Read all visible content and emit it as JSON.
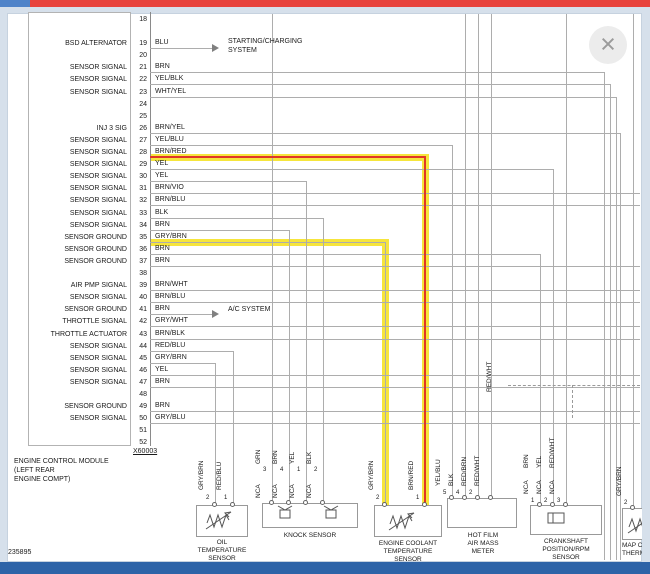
{
  "window": {
    "close_icon": "×",
    "doc_number": "235895"
  },
  "module": {
    "name_lines": [
      "ENGINE CONTROL MODULE",
      "(LEFT REAR",
      "ENGINE COMPT)"
    ],
    "connector_id": "X60003",
    "pins": [
      {
        "num": "18",
        "color": "",
        "signal": ""
      },
      {
        "num": "19",
        "color": "BLU",
        "signal": "BSD ALTERNATOR"
      },
      {
        "num": "20",
        "color": "",
        "signal": ""
      },
      {
        "num": "21",
        "color": "BRN",
        "signal": "SENSOR SIGNAL"
      },
      {
        "num": "22",
        "color": "YEL/BLK",
        "signal": "SENSOR SIGNAL"
      },
      {
        "num": "23",
        "color": "WHT/YEL",
        "signal": "SENSOR SIGNAL"
      },
      {
        "num": "24",
        "color": "",
        "signal": ""
      },
      {
        "num": "25",
        "color": "",
        "signal": ""
      },
      {
        "num": "26",
        "color": "BRN/YEL",
        "signal": "INJ 3 SIG"
      },
      {
        "num": "27",
        "color": "YEL/BLU",
        "signal": "SENSOR SIGNAL"
      },
      {
        "num": "28",
        "color": "BRN/RED",
        "signal": "SENSOR SIGNAL"
      },
      {
        "num": "29",
        "color": "YEL",
        "signal": "SENSOR SIGNAL"
      },
      {
        "num": "30",
        "color": "YEL",
        "signal": "SENSOR SIGNAL"
      },
      {
        "num": "31",
        "color": "BRN/VIO",
        "signal": "SENSOR SIGNAL"
      },
      {
        "num": "32",
        "color": "BRN/BLU",
        "signal": "SENSOR SIGNAL"
      },
      {
        "num": "33",
        "color": "BLK",
        "signal": "SENSOR SIGNAL"
      },
      {
        "num": "34",
        "color": "BRN",
        "signal": "SENSOR SIGNAL"
      },
      {
        "num": "35",
        "color": "GRY/BRN",
        "signal": "SENSOR GROUND"
      },
      {
        "num": "36",
        "color": "BRN",
        "signal": "SENSOR GROUND"
      },
      {
        "num": "37",
        "color": "BRN",
        "signal": "SENSOR GROUND"
      },
      {
        "num": "38",
        "color": "",
        "signal": ""
      },
      {
        "num": "39",
        "color": "BRN/WHT",
        "signal": "AIR PMP SIGNAL"
      },
      {
        "num": "40",
        "color": "BRN/BLU",
        "signal": "SENSOR SIGNAL"
      },
      {
        "num": "41",
        "color": "BRN",
        "signal": "SENSOR GROUND"
      },
      {
        "num": "42",
        "color": "GRY/WHT",
        "signal": "THROTTLE SIGNAL"
      },
      {
        "num": "43",
        "color": "BRN/BLK",
        "signal": "THROTTLE ACTUATOR"
      },
      {
        "num": "44",
        "color": "RED/BLU",
        "signal": "SENSOR SIGNAL"
      },
      {
        "num": "45",
        "color": "GRY/BRN",
        "signal": "SENSOR SIGNAL"
      },
      {
        "num": "46",
        "color": "YEL",
        "signal": "SENSOR SIGNAL"
      },
      {
        "num": "47",
        "color": "BRN",
        "signal": "SENSOR SIGNAL"
      },
      {
        "num": "48",
        "color": "",
        "signal": ""
      },
      {
        "num": "49",
        "color": "BRN",
        "signal": "SENSOR GROUND"
      },
      {
        "num": "50",
        "color": "GRY/BLU",
        "signal": "SENSOR SIGNAL"
      },
      {
        "num": "51",
        "color": "",
        "signal": ""
      },
      {
        "num": "52",
        "color": "",
        "signal": ""
      }
    ]
  },
  "external_links": {
    "starting_charging": [
      "STARTING/CHARGING",
      "SYSTEM"
    ],
    "ac_system": "A/C SYSTEM"
  },
  "wire_note": "RED/WHT",
  "sensors": [
    {
      "name_lines": [
        "OIL",
        "TEMPERATURE",
        "SENSOR"
      ],
      "wires": [
        {
          "color": "GRY/BRN",
          "pin": "2"
        },
        {
          "color": "RED/BLU",
          "pin": "1"
        }
      ]
    },
    {
      "name_lines": [
        "KNOCK SENSOR"
      ],
      "wires": [
        {
          "color": "GRN",
          "pin": "3",
          "nca": "NCA"
        },
        {
          "color": "BRN",
          "pin": "4",
          "nca": "NCA"
        },
        {
          "color": "YEL",
          "pin": "1",
          "nca": "NCA"
        },
        {
          "color": "BLK",
          "pin": "2",
          "nca": "NCA"
        }
      ]
    },
    {
      "name_lines": [
        "ENGINE COOLANT",
        "TEMPERATURE",
        "SENSOR"
      ],
      "wires": [
        {
          "color": "GRY/BRN",
          "pin": "2"
        },
        {
          "color": "BRN/RED",
          "pin": "1"
        }
      ]
    },
    {
      "name_lines": [
        "HOT FILM",
        "AIR MASS",
        "METER"
      ],
      "wires": [
        {
          "color": "YEL/BLU",
          "pin": "5"
        },
        {
          "color": "BLK",
          "pin": "4"
        },
        {
          "color": "RED/BRN",
          "pin": "2"
        },
        {
          "color": "RED/WHT",
          "pin": ""
        }
      ]
    },
    {
      "name_lines": [
        "CRANKSHAFT",
        "POSITION/RPM",
        "SENSOR"
      ],
      "wires": [
        {
          "color": "BRN",
          "pin": "1",
          "nca": "NCA"
        },
        {
          "color": "YEL",
          "pin": "2",
          "nca": "NCA"
        },
        {
          "color": "RED/WHT",
          "pin": "3",
          "nca": "NCA"
        }
      ]
    },
    {
      "name_lines": [
        "MAP CO",
        "THERM"
      ],
      "wires": [
        {
          "color": "GRY/BRN",
          "pin": "2"
        }
      ]
    }
  ]
}
